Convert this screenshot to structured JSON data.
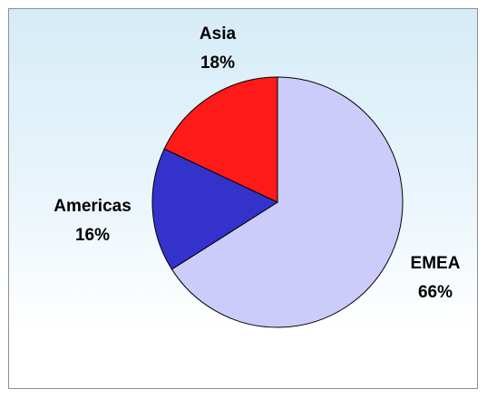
{
  "chart_data": {
    "type": "pie",
    "title": "",
    "slices": [
      {
        "label": "EMEA",
        "percent_label": "66%",
        "value": 66,
        "color": "#ccccfa"
      },
      {
        "label": "Americas",
        "percent_label": "16%",
        "value": 16,
        "color": "#3333cc"
      },
      {
        "label": "Asia",
        "percent_label": "18%",
        "value": 18,
        "color": "#ff1a1a"
      }
    ],
    "start_angle_deg": 0,
    "direction": "clockwise",
    "legend": "none",
    "background": [
      "#d6ecf7",
      "#ffffff"
    ]
  }
}
